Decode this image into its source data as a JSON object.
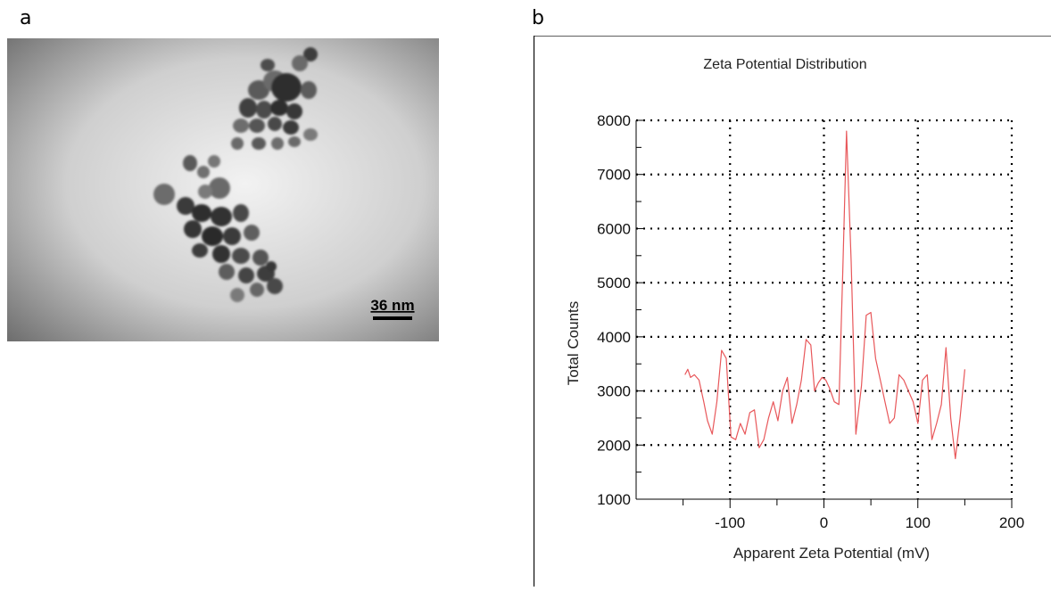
{
  "panels": {
    "a": {
      "letter": "a",
      "scale_bar": "36 nm"
    },
    "b": {
      "letter": "b"
    }
  },
  "chart_data": {
    "type": "line",
    "title": "Zeta Potential Distribution",
    "xlabel": "Apparent Zeta Potential (mV)",
    "ylabel": "Total Counts",
    "xlim": [
      -200,
      200
    ],
    "ylim": [
      1000,
      8000
    ],
    "xticks": [
      -100,
      0,
      100,
      200
    ],
    "yticks": [
      1000,
      2000,
      3000,
      4000,
      5000,
      6000,
      7000,
      8000
    ],
    "grid": true,
    "line_color": "#e8575a",
    "series": [
      {
        "x": [
          -148,
          -145,
          -142,
          -138,
          -133,
          -128,
          -124,
          -119,
          -114,
          -109,
          -104,
          -99,
          -94,
          -89,
          -84,
          -79,
          -74,
          -69,
          -64,
          -59,
          -54,
          -49,
          -44,
          -39,
          -34,
          -29,
          -24,
          -19,
          -14,
          -10,
          -6,
          -2,
          2,
          6,
          11,
          16,
          20,
          24,
          29,
          34,
          40,
          45,
          50,
          55,
          60,
          65,
          70,
          75,
          80,
          85,
          90,
          95,
          100,
          105,
          110,
          115,
          120,
          125,
          130,
          135,
          140,
          145,
          150
        ],
        "y": [
          3300,
          3400,
          3250,
          3300,
          3200,
          2800,
          2450,
          2200,
          2800,
          3750,
          3600,
          2150,
          2100,
          2400,
          2200,
          2600,
          2650,
          1950,
          2100,
          2500,
          2800,
          2450,
          3000,
          3250,
          2400,
          2750,
          3200,
          3950,
          3850,
          3000,
          3150,
          3250,
          3200,
          3050,
          2800,
          2750,
          5200,
          7800,
          5400,
          2200,
          3100,
          4400,
          4450,
          3600,
          3200,
          2800,
          2400,
          2500,
          3300,
          3200,
          3000,
          2800,
          2400,
          3200,
          3300,
          2100,
          2400,
          2750,
          3800,
          2500,
          1750,
          2500,
          3400
        ]
      }
    ]
  }
}
